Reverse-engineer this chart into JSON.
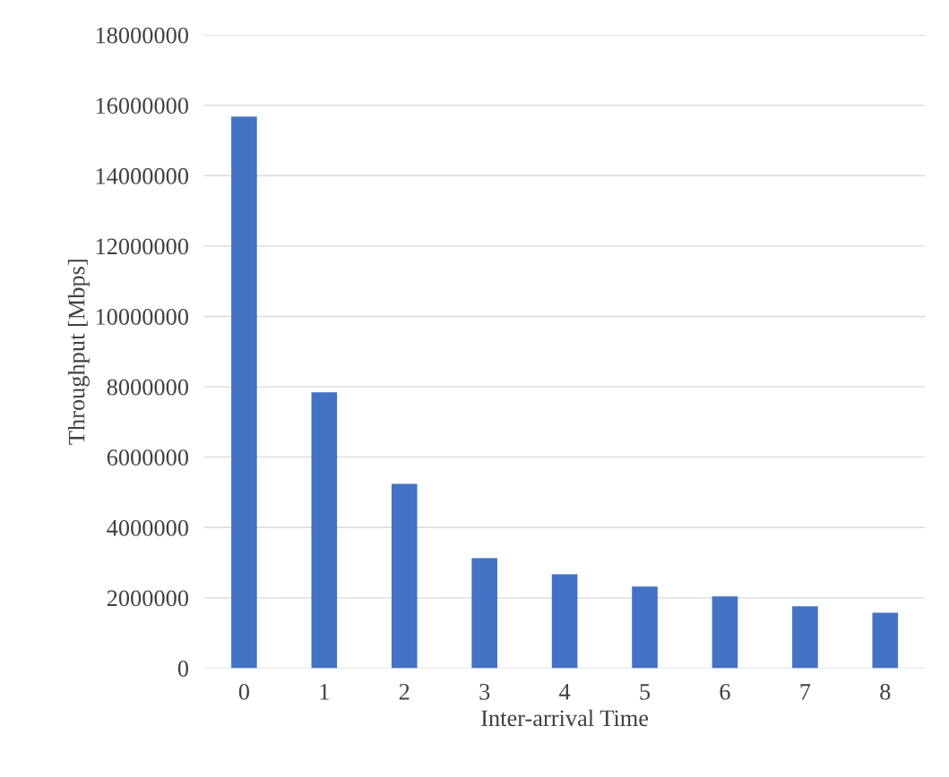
{
  "chart_data": {
    "type": "bar",
    "xlabel": "Inter-arrival Time",
    "ylabel": "Throughput [Mbps]",
    "categories": [
      "0",
      "1",
      "2",
      "3",
      "4",
      "5",
      "6",
      "7",
      "8"
    ],
    "values": [
      15680000,
      7840000,
      5240000,
      3130000,
      2670000,
      2320000,
      2040000,
      1760000,
      1580000
    ],
    "color": "#4472c4",
    "ylim": [
      0,
      18000000
    ],
    "yticks": [
      0,
      2000000,
      4000000,
      6000000,
      8000000,
      10000000,
      12000000,
      14000000,
      16000000,
      18000000
    ],
    "grid": "y"
  }
}
